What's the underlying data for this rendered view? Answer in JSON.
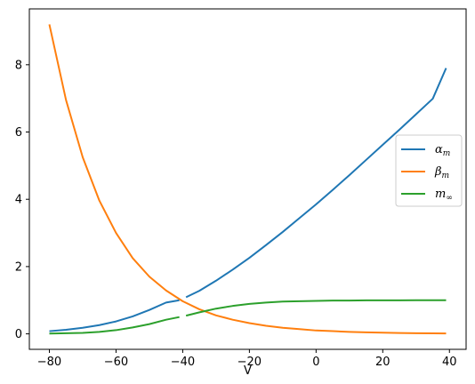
{
  "chart_data": {
    "type": "line",
    "xlabel": "V",
    "ylabel": "",
    "xlim": [
      -86,
      45
    ],
    "ylim": [
      -0.46,
      9.66
    ],
    "x_ticks": [
      -80,
      -60,
      -40,
      -20,
      0,
      20,
      40
    ],
    "x_tick_labels": [
      "−80",
      "−60",
      "−40",
      "−20",
      "0",
      "20",
      "40"
    ],
    "y_ticks": [
      0,
      2,
      4,
      6,
      8
    ],
    "y_tick_labels": [
      "0",
      "2",
      "4",
      "6",
      "8"
    ],
    "grid": false,
    "legend_position": "center-right",
    "series": [
      {
        "name": "αm",
        "symbol": "α",
        "subscript": "m",
        "color": "#1f77b4",
        "x": [
          -80,
          -75,
          -70,
          -65,
          -60,
          -55,
          -50,
          -45,
          -41,
          -39,
          -35,
          -30,
          -25,
          -20,
          -15,
          -10,
          -5,
          0,
          5,
          10,
          15,
          20,
          25,
          30,
          35,
          39
        ],
        "y": [
          0.08,
          0.12,
          0.18,
          0.26,
          0.37,
          0.52,
          0.71,
          0.93,
          1.0,
          1.09,
          1.28,
          1.58,
          1.91,
          2.26,
          2.64,
          3.03,
          3.44,
          3.85,
          4.28,
          4.72,
          5.17,
          5.62,
          6.07,
          6.53,
          6.99,
          7.9
        ]
      },
      {
        "name": "βm",
        "symbol": "β",
        "subscript": "m",
        "color": "#ff7f0e",
        "x": [
          -80,
          -75,
          -70,
          -65,
          -60,
          -55,
          -50,
          -45,
          -40,
          -35,
          -30,
          -25,
          -20,
          -15,
          -10,
          -5,
          0,
          5,
          10,
          15,
          20,
          25,
          30,
          35,
          39
        ],
        "y": [
          9.2,
          6.95,
          5.25,
          3.96,
          3.0,
          2.25,
          1.7,
          1.29,
          0.97,
          0.73,
          0.55,
          0.42,
          0.32,
          0.24,
          0.18,
          0.14,
          0.1,
          0.08,
          0.06,
          0.045,
          0.034,
          0.026,
          0.019,
          0.015,
          0.012
        ]
      },
      {
        "name": "m∞",
        "symbol": "m",
        "subscript": "∞",
        "color": "#2ca02c",
        "x": [
          -80,
          -75,
          -70,
          -65,
          -60,
          -55,
          -50,
          -45,
          -41,
          -39,
          -35,
          -30,
          -25,
          -20,
          -15,
          -10,
          -5,
          0,
          5,
          10,
          15,
          20,
          25,
          30,
          35,
          39
        ],
        "y": [
          0.01,
          0.02,
          0.03,
          0.06,
          0.11,
          0.19,
          0.29,
          0.42,
          0.5,
          0.54,
          0.64,
          0.75,
          0.83,
          0.89,
          0.93,
          0.96,
          0.97,
          0.98,
          0.99,
          0.99,
          0.995,
          0.997,
          0.998,
          0.999,
          0.999,
          0.999
        ]
      }
    ]
  }
}
